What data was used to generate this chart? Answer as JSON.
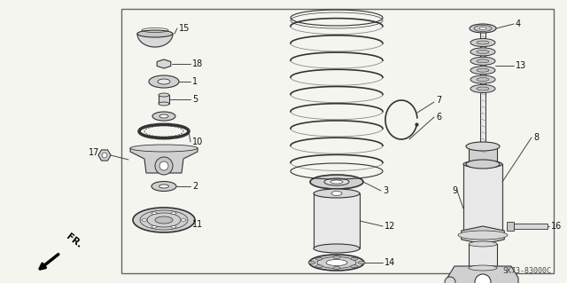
{
  "bg_color": "#f5f5f0",
  "border_color": "#666666",
  "line_color": "#333333",
  "text_color": "#111111",
  "diagram_title": "SK73-83000C",
  "fr_label": "FR.",
  "figsize": [
    6.4,
    3.19
  ],
  "dpi": 100,
  "border": [
    0.215,
    0.035,
    0.755,
    0.955
  ]
}
